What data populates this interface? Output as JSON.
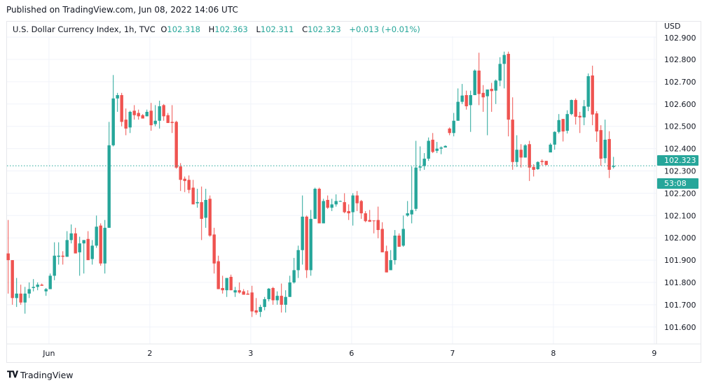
{
  "published": "Published on TradingView.com, Jun 08, 2022 14:06 UTC",
  "legend": {
    "title": "U.S. Dollar Currency Index, 1h, TVC",
    "o_label": "O",
    "o": "102.318",
    "h_label": "H",
    "h": "102.363",
    "l_label": "L",
    "l": "102.311",
    "c_label": "C",
    "c": "102.323",
    "change": "+0.013 (+0.01%)"
  },
  "footer": {
    "brand": "TradingView",
    "logo_mark": "17"
  },
  "colors": {
    "up": "#26a69a",
    "down": "#ef5350",
    "grid": "#f0f3fa"
  },
  "chart_data": {
    "type": "candlestick",
    "title": "U.S. Dollar Currency Index, 1h, TVC",
    "currency": "USD",
    "ylim": [
      101.55,
      102.9
    ],
    "y_ticks": [
      "102.900",
      "102.800",
      "102.700",
      "102.600",
      "102.500",
      "102.400",
      "102.300",
      "102.200",
      "102.100",
      "102.000",
      "101.900",
      "101.800",
      "101.700",
      "101.600"
    ],
    "x_ticks": [
      {
        "label": "Jun",
        "bar": 9.7
      },
      {
        "label": "2",
        "bar": 33.7
      },
      {
        "label": "3",
        "bar": 57.7
      },
      {
        "label": "6",
        "bar": 81.7
      },
      {
        "label": "7",
        "bar": 105.7
      },
      {
        "label": "8",
        "bar": 129.7
      },
      {
        "label": "9",
        "bar": 153.7
      }
    ],
    "last_price": {
      "value": 102.323,
      "label": "102.323",
      "countdown": "53:08"
    },
    "ohlc": [
      [
        101.93,
        102.08,
        101.75,
        101.9
      ],
      [
        101.9,
        101.9,
        101.7,
        101.73
      ],
      [
        101.73,
        101.82,
        101.69,
        101.75
      ],
      [
        101.75,
        101.79,
        101.7,
        101.71
      ],
      [
        101.71,
        101.78,
        101.66,
        101.75
      ],
      [
        101.75,
        101.8,
        101.73,
        101.77
      ],
      [
        101.775,
        101.815,
        101.76,
        101.78
      ],
      [
        101.78,
        101.8,
        101.765,
        101.79
      ],
      [
        101.79,
        101.795,
        101.785,
        101.785
      ],
      [
        101.76,
        101.775,
        101.74,
        101.77
      ],
      [
        101.77,
        101.84,
        101.77,
        101.83
      ],
      [
        101.83,
        101.98,
        101.81,
        101.92
      ],
      [
        101.915,
        101.98,
        101.88,
        101.92
      ],
      [
        101.92,
        101.94,
        101.88,
        101.915
      ],
      [
        101.915,
        102.03,
        101.915,
        101.99
      ],
      [
        101.99,
        102.06,
        101.975,
        102.02
      ],
      [
        102.02,
        102.045,
        101.93,
        101.93
      ],
      [
        101.935,
        102.005,
        101.83,
        101.975
      ],
      [
        101.975,
        101.99,
        101.84,
        101.99
      ],
      [
        101.995,
        102.03,
        101.9,
        101.9
      ],
      [
        101.905,
        101.99,
        101.88,
        101.965
      ],
      [
        101.965,
        102.1,
        101.955,
        102.05
      ],
      [
        102.055,
        102.065,
        101.875,
        101.885
      ],
      [
        101.885,
        102.08,
        101.84,
        102.045
      ],
      [
        102.045,
        102.52,
        102.045,
        102.415
      ],
      [
        102.415,
        102.73,
        102.41,
        102.625
      ],
      [
        102.625,
        102.65,
        102.565,
        102.64
      ],
      [
        102.64,
        102.65,
        102.5,
        102.52
      ],
      [
        102.53,
        102.58,
        102.46,
        102.49
      ],
      [
        102.495,
        102.57,
        102.47,
        102.565
      ],
      [
        102.57,
        102.595,
        102.53,
        102.55
      ],
      [
        102.56,
        102.575,
        102.53,
        102.545
      ],
      [
        102.55,
        102.555,
        102.535,
        102.535
      ],
      [
        102.545,
        102.575,
        102.545,
        102.565
      ],
      [
        102.57,
        102.605,
        102.48,
        102.505
      ],
      [
        102.51,
        102.595,
        102.5,
        102.525
      ],
      [
        102.525,
        102.615,
        102.49,
        102.59
      ],
      [
        102.595,
        102.6,
        102.525,
        102.545
      ],
      [
        102.55,
        102.56,
        102.515,
        102.515
      ],
      [
        102.52,
        102.595,
        102.47,
        102.515
      ],
      [
        102.52,
        102.525,
        102.31,
        102.315
      ],
      [
        102.32,
        102.335,
        102.21,
        102.26
      ],
      [
        102.265,
        102.275,
        102.205,
        102.255
      ],
      [
        102.26,
        102.28,
        102.2,
        102.215
      ],
      [
        102.225,
        102.26,
        102.15,
        102.15
      ],
      [
        102.155,
        102.22,
        102.135,
        102.16
      ],
      [
        102.16,
        102.23,
        101.99,
        102.085
      ],
      [
        102.09,
        102.22,
        102.045,
        102.17
      ],
      [
        102.175,
        102.19,
        102.005,
        102.01
      ],
      [
        102.015,
        102.045,
        101.84,
        101.885
      ],
      [
        101.895,
        101.92,
        101.77,
        101.77
      ],
      [
        101.775,
        101.83,
        101.75,
        101.765
      ],
      [
        101.765,
        101.82,
        101.735,
        101.82
      ],
      [
        101.825,
        101.835,
        101.765,
        101.765
      ],
      [
        101.755,
        101.78,
        101.735,
        101.765
      ],
      [
        101.765,
        101.8,
        101.75,
        101.755
      ],
      [
        101.76,
        101.77,
        101.745,
        101.745
      ],
      [
        101.75,
        101.765,
        101.745,
        101.745
      ],
      [
        101.755,
        101.785,
        101.645,
        101.67
      ],
      [
        101.675,
        101.73,
        101.655,
        101.665
      ],
      [
        101.668,
        101.7,
        101.645,
        101.69
      ],
      [
        101.69,
        101.735,
        101.675,
        101.725
      ],
      [
        101.725,
        101.775,
        101.715,
        101.772
      ],
      [
        101.775,
        101.78,
        101.7,
        101.72
      ],
      [
        101.72,
        101.76,
        101.7,
        101.74
      ],
      [
        101.74,
        101.795,
        101.665,
        101.7
      ],
      [
        101.7,
        101.765,
        101.665,
        101.735
      ],
      [
        101.735,
        101.83,
        101.735,
        101.8
      ],
      [
        101.8,
        101.91,
        101.795,
        101.855
      ],
      [
        101.855,
        101.965,
        101.82,
        101.945
      ],
      [
        101.945,
        102.19,
        101.88,
        102.095
      ],
      [
        102.095,
        102.1,
        101.82,
        101.855
      ],
      [
        101.855,
        102.125,
        101.83,
        102.085
      ],
      [
        102.085,
        102.225,
        102.085,
        102.22
      ],
      [
        102.22,
        102.225,
        102.065,
        102.065
      ],
      [
        102.065,
        102.175,
        102.065,
        102.165
      ],
      [
        102.17,
        102.19,
        102.13,
        102.135
      ],
      [
        102.135,
        102.175,
        102.12,
        102.15
      ],
      [
        102.15,
        102.195,
        102.14,
        102.165
      ],
      [
        102.162,
        102.167,
        102.162,
        102.165
      ],
      [
        102.16,
        102.2,
        102.11,
        102.115
      ],
      [
        102.12,
        102.15,
        102.08,
        102.11
      ],
      [
        102.115,
        102.2,
        102.055,
        102.19
      ],
      [
        102.19,
        102.21,
        102.12,
        102.155
      ],
      [
        102.165,
        102.17,
        102.085,
        102.11
      ],
      [
        102.11,
        102.12,
        102.07,
        102.075
      ],
      [
        102.08,
        102.125,
        102.072,
        102.072
      ],
      [
        102.078,
        102.078,
        102.02,
        102.075
      ],
      [
        102.08,
        102.14,
        101.998,
        102.035
      ],
      [
        102.04,
        102.07,
        101.935,
        101.935
      ],
      [
        101.94,
        101.965,
        101.845,
        101.845
      ],
      [
        101.855,
        101.945,
        101.855,
        101.9
      ],
      [
        101.9,
        102.035,
        101.88,
        102.01
      ],
      [
        102.01,
        102.02,
        101.96,
        101.96
      ],
      [
        101.965,
        102.1,
        101.96,
        102.04
      ],
      [
        102.1,
        102.165,
        102.095,
        102.11
      ],
      [
        102.105,
        102.32,
        102.065,
        102.125
      ],
      [
        102.13,
        102.435,
        102.12,
        102.315
      ],
      [
        102.315,
        102.41,
        102.3,
        102.32
      ],
      [
        102.322,
        102.38,
        102.305,
        102.355
      ],
      [
        102.355,
        102.45,
        102.345,
        102.435
      ],
      [
        102.44,
        102.47,
        102.38,
        102.385
      ],
      [
        102.39,
        102.43,
        102.38,
        102.4
      ],
      [
        102.4,
        102.41,
        102.375,
        102.405
      ],
      [
        102.405,
        102.415,
        102.405,
        102.412
      ],
      [
        102.49,
        102.495,
        102.46,
        102.47
      ],
      [
        102.47,
        102.56,
        102.455,
        102.525
      ],
      [
        102.525,
        102.67,
        102.525,
        102.61
      ],
      [
        102.61,
        102.69,
        102.6,
        102.638
      ],
      [
        102.64,
        102.66,
        102.575,
        102.59
      ],
      [
        102.595,
        102.66,
        102.475,
        102.64
      ],
      [
        102.64,
        102.755,
        102.64,
        102.75
      ],
      [
        102.75,
        102.83,
        102.595,
        102.645
      ],
      [
        102.65,
        102.685,
        102.565,
        102.63
      ],
      [
        102.635,
        102.665,
        102.46,
        102.665
      ],
      [
        102.668,
        102.695,
        102.565,
        102.658
      ],
      [
        102.66,
        102.71,
        102.6,
        102.705
      ],
      [
        102.705,
        102.81,
        102.68,
        102.78
      ],
      [
        102.78,
        102.835,
        102.67,
        102.82
      ],
      [
        102.825,
        102.835,
        102.455,
        102.53
      ],
      [
        102.53,
        102.63,
        102.305,
        102.34
      ],
      [
        102.34,
        102.46,
        102.318,
        102.395
      ],
      [
        102.395,
        102.42,
        102.315,
        102.36
      ],
      [
        102.36,
        102.42,
        102.36,
        102.415
      ],
      [
        102.42,
        102.435,
        102.255,
        102.315
      ],
      [
        102.318,
        102.33,
        102.275,
        102.305
      ],
      [
        102.308,
        102.343,
        102.305,
        102.34
      ],
      [
        102.345,
        102.352,
        102.325,
        102.34
      ],
      [
        102.345,
        102.345,
        102.325,
        102.327
      ],
      [
        102.383,
        102.425,
        102.383,
        102.418
      ],
      [
        102.418,
        102.478,
        102.395,
        102.475
      ],
      [
        102.475,
        102.555,
        102.468,
        102.528
      ],
      [
        102.533,
        102.533,
        102.432,
        102.477
      ],
      [
        102.48,
        102.572,
        102.468,
        102.555
      ],
      [
        102.555,
        102.62,
        102.55,
        102.618
      ],
      [
        102.618,
        102.625,
        102.508,
        102.543
      ],
      [
        102.547,
        102.565,
        102.47,
        102.54
      ],
      [
        102.54,
        102.618,
        102.505,
        102.59
      ],
      [
        102.588,
        102.737,
        102.568,
        102.725
      ],
      [
        102.728,
        102.772,
        102.505,
        102.553
      ],
      [
        102.558,
        102.568,
        102.43,
        102.477
      ],
      [
        102.483,
        102.505,
        102.323,
        102.355
      ],
      [
        102.357,
        102.53,
        102.335,
        102.44
      ],
      [
        102.443,
        102.478,
        102.268,
        102.305
      ],
      [
        102.318,
        102.363,
        102.311,
        102.323
      ]
    ]
  }
}
